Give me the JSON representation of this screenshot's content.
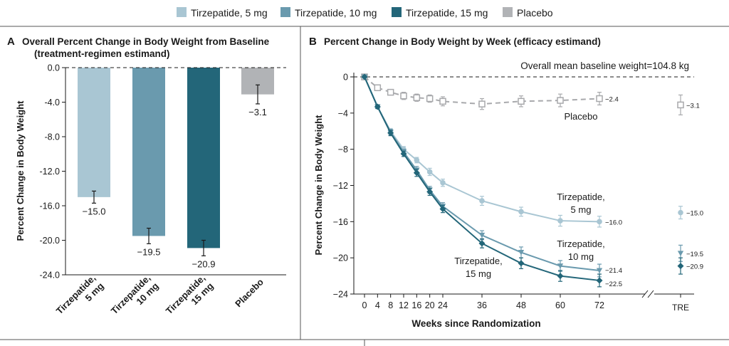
{
  "legend": [
    {
      "label": "Tirzepatide, 5 mg",
      "color": "#a9c6d3"
    },
    {
      "label": "Tirzepatide, 10 mg",
      "color": "#6a9aae"
    },
    {
      "label": "Tirzepatide, 15 mg",
      "color": "#236679"
    },
    {
      "label": "Placebo",
      "color": "#b1b3b6"
    }
  ],
  "panelA": {
    "letter": "A",
    "title_line1": "Overall Percent Change in Body Weight from Baseline",
    "title_line2": "(treatment-regimen estimand)",
    "ylabel": "Percent Change in Body Weight"
  },
  "panelB": {
    "letter": "B",
    "title": "Percent Change in Body Weight by Week (efficacy estimand)",
    "ylabel": "Percent Change in Body Weight",
    "xlabel": "Weeks since Randomization",
    "annotation": "Overall mean baseline weight=104.8 kg",
    "tre_label": "TRE",
    "series_labels": {
      "placebo": "Placebo",
      "t5_line1": "Tirzepatide,",
      "t5_line2": "5 mg",
      "t10_line1": "Tirzepatide,",
      "t10_line2": "10 mg",
      "t15_line1": "Tirzepatide,",
      "t15_line2": "15 mg"
    }
  },
  "chart_data": [
    {
      "type": "bar",
      "title": "Overall Percent Change in Body Weight from Baseline (treatment-regimen estimand)",
      "ylabel": "Percent Change in Body Weight",
      "ylim": [
        -24.0,
        0.0
      ],
      "yticks": [
        "0.0",
        "-4.0",
        "-8.0",
        "-12.0",
        "-16.0",
        "-20.0",
        "-24.0"
      ],
      "categories": [
        [
          "Tirzepatide,",
          "5 mg"
        ],
        [
          "Tirzepatide,",
          "10 mg"
        ],
        [
          "Tirzepatide,",
          "15 mg"
        ],
        [
          "Placebo"
        ]
      ],
      "values": [
        -15.0,
        -19.5,
        -20.9,
        -3.1
      ],
      "value_labels": [
        "−15.0",
        "−19.5",
        "−20.9",
        "−3.1"
      ],
      "errors": [
        0.7,
        0.9,
        0.9,
        1.1
      ],
      "colors": [
        "#a9c6d3",
        "#6a9aae",
        "#236679",
        "#b1b3b6"
      ]
    },
    {
      "type": "line",
      "title": "Percent Change in Body Weight by Week (efficacy estimand)",
      "xlabel": "Weeks since Randomization",
      "ylabel": "Percent Change in Body Weight",
      "ylim": [
        -24,
        0
      ],
      "yticks": [
        "0",
        "−4",
        "−8",
        "−12",
        "−16",
        "−20",
        "−24"
      ],
      "x": [
        0,
        4,
        8,
        12,
        16,
        20,
        24,
        36,
        48,
        60,
        72
      ],
      "xticks": [
        "0",
        "4",
        "8",
        "12",
        "16",
        "20",
        "24",
        "36",
        "48",
        "60",
        "72"
      ],
      "series": [
        {
          "name": "Placebo",
          "color": "#a8a9ac",
          "marker": "square",
          "values": [
            0,
            -1.2,
            -1.7,
            -2.1,
            -2.3,
            -2.4,
            -2.7,
            -3.0,
            -2.7,
            -2.6,
            -2.4
          ],
          "errors": [
            0,
            0.3,
            0.3,
            0.4,
            0.4,
            0.4,
            0.5,
            0.6,
            0.6,
            0.7,
            0.7
          ],
          "end_label": "−2.4",
          "tre_value": -3.1,
          "tre_error": 1.1,
          "tre_label": "−3.1"
        },
        {
          "name": "Tirzepatide, 5 mg",
          "color": "#a9c6d3",
          "marker": "circle",
          "values": [
            0,
            -3.3,
            -6.0,
            -8.0,
            -9.2,
            -10.5,
            -11.7,
            -13.7,
            -14.9,
            -15.9,
            -16.0
          ],
          "errors": [
            0,
            0.2,
            0.3,
            0.3,
            0.3,
            0.4,
            0.4,
            0.5,
            0.5,
            0.6,
            0.6
          ],
          "end_label": "−16.0",
          "tre_value": -15.0,
          "tre_error": 0.7,
          "tre_label": "−15.0"
        },
        {
          "name": "Tirzepatide, 10 mg",
          "color": "#6a9aae",
          "marker": "triangle",
          "values": [
            0,
            -3.3,
            -6.1,
            -8.3,
            -10.3,
            -12.5,
            -14.3,
            -17.5,
            -19.4,
            -20.9,
            -21.4
          ],
          "errors": [
            0,
            0.2,
            0.3,
            0.3,
            0.4,
            0.4,
            0.4,
            0.5,
            0.6,
            0.6,
            0.7
          ],
          "end_label": "−21.4",
          "tre_value": -19.5,
          "tre_error": 0.9,
          "tre_label": "−19.5"
        },
        {
          "name": "Tirzepatide, 15 mg",
          "color": "#236679",
          "marker": "diamond",
          "values": [
            0,
            -3.3,
            -6.2,
            -8.5,
            -10.6,
            -12.7,
            -14.6,
            -18.4,
            -20.6,
            -22.0,
            -22.5
          ],
          "errors": [
            0,
            0.2,
            0.3,
            0.3,
            0.4,
            0.4,
            0.4,
            0.5,
            0.6,
            0.6,
            0.7
          ],
          "end_label": "−22.5",
          "tre_value": -20.9,
          "tre_error": 0.9,
          "tre_label": "−20.9"
        }
      ]
    }
  ]
}
